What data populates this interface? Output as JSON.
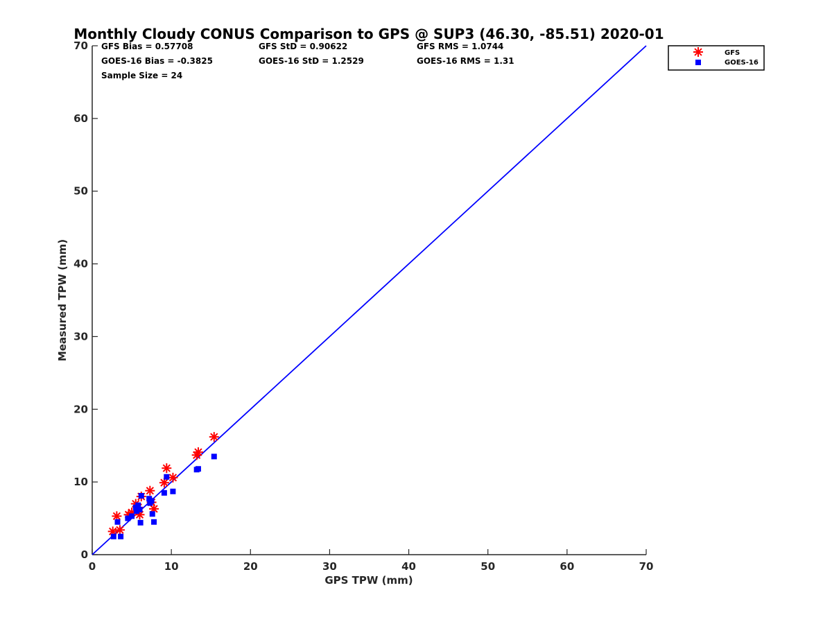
{
  "chart_data": {
    "type": "scatter",
    "title": "Monthly Cloudy CONUS Comparison to GPS @ SUP3 (46.30, -85.51) 2020-01",
    "xlabel": "GPS TPW (mm)",
    "ylabel": "Measured TPW (mm)",
    "xlim": [
      0,
      70
    ],
    "ylim": [
      0,
      70
    ],
    "xticks": [
      0,
      10,
      20,
      30,
      40,
      50,
      60,
      70
    ],
    "yticks": [
      0,
      10,
      20,
      30,
      40,
      50,
      60,
      70
    ],
    "grid": false,
    "legend_position": "top-right outside",
    "stats": [
      [
        "GFS Bias = 0.57708",
        "GFS StD = 0.90622",
        "GFS RMS = 1.0744"
      ],
      [
        "GOES-16 Bias = -0.3825",
        "GOES-16 StD = 1.2529",
        "GOES-16 RMS = 1.31"
      ],
      [
        "Sample Size = 24"
      ]
    ],
    "reference_line": {
      "x": [
        0,
        70
      ],
      "y": [
        0,
        70
      ],
      "color": "#0000ff"
    },
    "series": [
      {
        "name": "GFS",
        "marker": "asterisk",
        "color": "#ff0000",
        "x": [
          2.6,
          3.1,
          3.5,
          4.6,
          5.0,
          5.5,
          5.8,
          6.0,
          6.2,
          7.3,
          7.5,
          7.8,
          9.1,
          9.4,
          10.2,
          13.2,
          13.4,
          15.4
        ],
        "y": [
          3.2,
          5.3,
          3.4,
          5.5,
          5.8,
          7.0,
          6.5,
          5.5,
          8.0,
          8.8,
          7.2,
          6.3,
          9.9,
          11.9,
          10.6,
          13.7,
          14.1,
          16.2
        ]
      },
      {
        "name": "GOES-16",
        "marker": "square",
        "color": "#0000ff",
        "x": [
          2.7,
          3.2,
          3.6,
          4.5,
          5.0,
          5.5,
          5.6,
          5.8,
          6.0,
          6.1,
          6.2,
          7.2,
          7.3,
          7.5,
          7.6,
          7.8,
          9.1,
          9.4,
          10.2,
          13.2,
          13.4,
          15.4
        ],
        "y": [
          2.5,
          4.5,
          2.5,
          5.0,
          5.3,
          6.5,
          6.0,
          6.8,
          6.2,
          4.4,
          8.1,
          7.7,
          7.1,
          7.4,
          5.6,
          4.5,
          8.5,
          10.7,
          8.7,
          11.7,
          11.8,
          13.5
        ]
      }
    ]
  }
}
